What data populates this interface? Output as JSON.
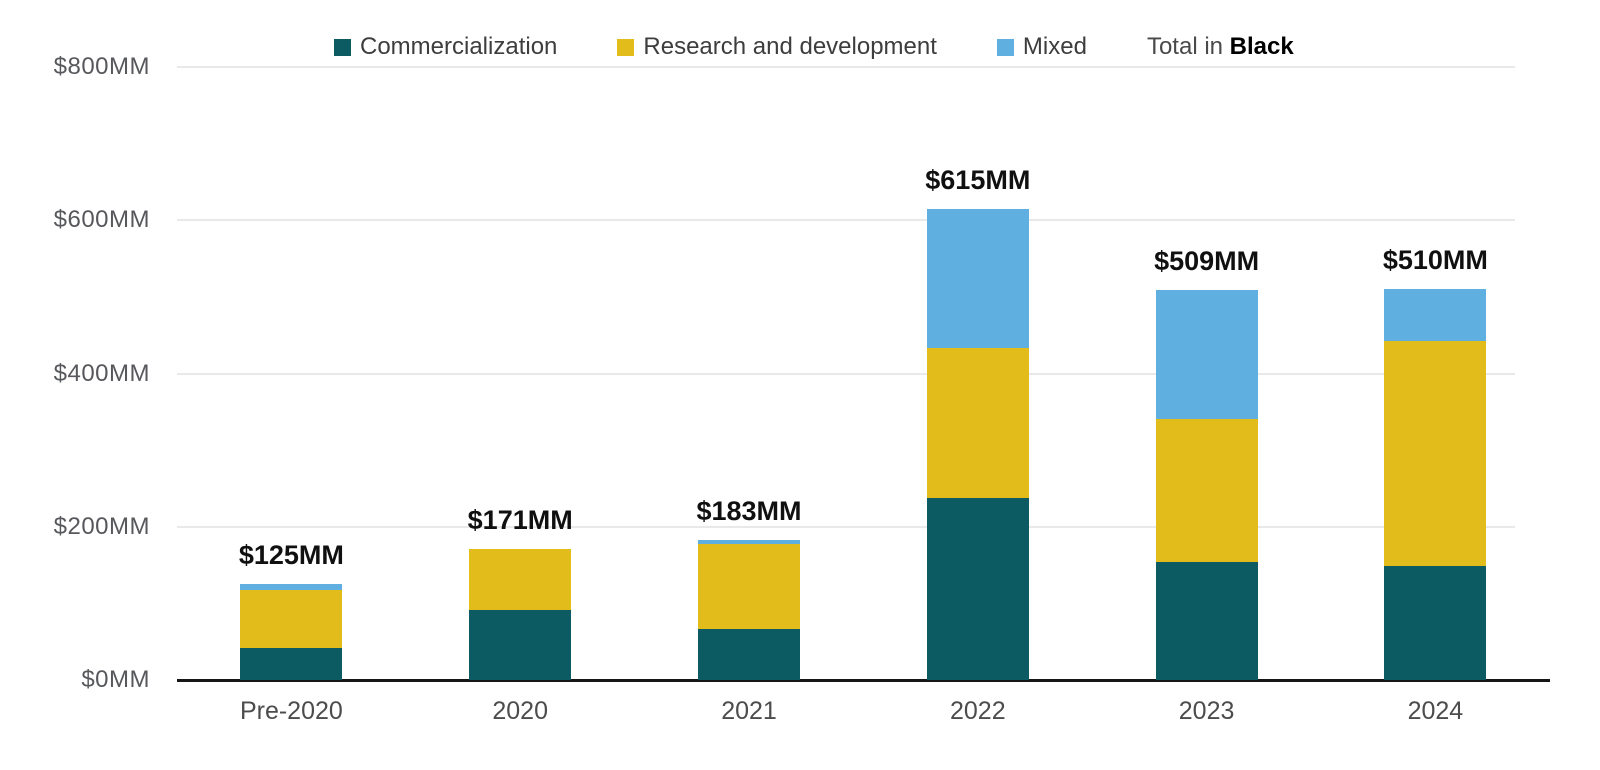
{
  "legend": {
    "items": [
      {
        "name": "commercialization",
        "label": "Commercialization",
        "color": "#0c5a62"
      },
      {
        "name": "research-and-development",
        "label": "Research and development",
        "color": "#e2bc1a"
      },
      {
        "name": "mixed",
        "label": "Mixed",
        "color": "#5fb0e0"
      }
    ],
    "total_note_prefix": "Total in",
    "total_note_bold": "Black"
  },
  "chart_data": {
    "type": "bar",
    "stacked": true,
    "title": "",
    "xlabel": "",
    "ylabel": "",
    "ylim": [
      0,
      800
    ],
    "grid": true,
    "legend_position": "top",
    "categories": [
      "Pre-2020",
      "2020",
      "2021",
      "2022",
      "2023",
      "2024"
    ],
    "series": [
      {
        "name": "Commercialization",
        "color": "#0c5a62",
        "values": [
          42,
          92,
          66,
          238,
          154,
          149
        ]
      },
      {
        "name": "Research and development",
        "color": "#e2bc1a",
        "values": [
          76,
          79,
          112,
          195,
          187,
          293
        ]
      },
      {
        "name": "Mixed",
        "color": "#5fb0e0",
        "values": [
          7,
          0,
          5,
          182,
          168,
          68
        ]
      }
    ],
    "totals": [
      125,
      171,
      183,
      615,
      509,
      510
    ],
    "total_labels": [
      "$125MM",
      "$171MM",
      "$183MM",
      "$615MM",
      "$509MM",
      "$510MM"
    ],
    "y_ticks": [
      {
        "label": "$800MM",
        "value": 800
      },
      {
        "label": "$600MM",
        "value": 600
      },
      {
        "label": "$400MM",
        "value": 400
      },
      {
        "label": "$200MM",
        "value": 200
      },
      {
        "label": "$0MM",
        "value": 0
      }
    ]
  },
  "colors": {
    "axis": "#161616",
    "gridline": "#e9e9e9",
    "y_tick_text": "#57585c",
    "x_tick_text": "#4c4c4c",
    "legend_text": "#3d3d3d",
    "total_text": "#101010",
    "background": "#ffffff"
  }
}
